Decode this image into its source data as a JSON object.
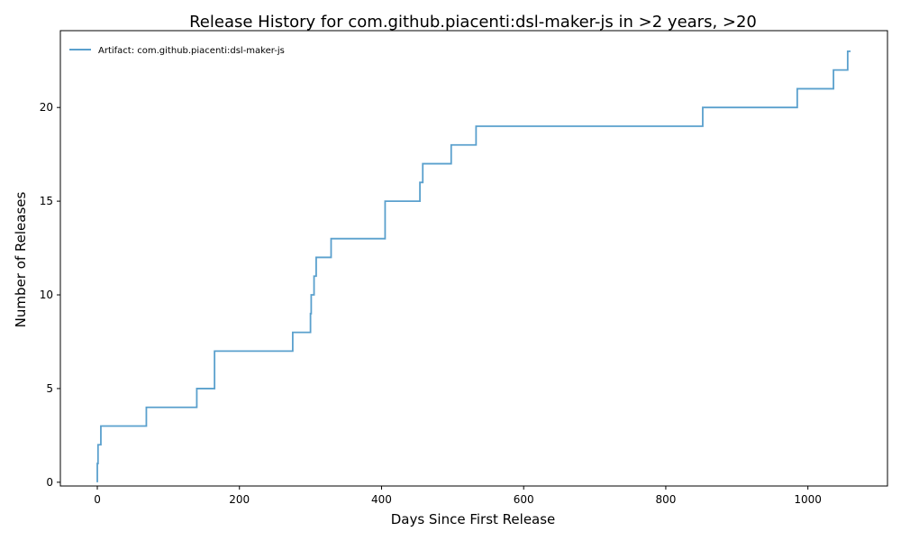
{
  "chart_data": {
    "type": "line",
    "title": "Release History for com.github.piacenti:dsl-maker-js in >2 years, >20",
    "xlabel": "Days Since First Release",
    "ylabel": "Number of Releases",
    "xlim": [
      -52,
      1112
    ],
    "ylim": [
      -0.2,
      24.1
    ],
    "xticks": [
      0,
      200,
      400,
      600,
      800,
      1000
    ],
    "yticks": [
      0,
      5,
      10,
      15,
      20
    ],
    "grid": false,
    "legend_position": "top-left",
    "series": [
      {
        "name": "Artifact: com.github.piacenti:dsl-maker-js",
        "color": "#5aa0cd",
        "step": "post",
        "x": [
          0,
          1,
          5,
          69,
          140,
          165,
          275,
          300,
          301,
          305,
          308,
          329,
          405,
          454,
          458,
          498,
          533,
          852,
          985,
          1036,
          1056,
          1060
        ],
        "y": [
          1,
          2,
          3,
          4,
          5,
          7,
          8,
          9,
          10,
          11,
          12,
          13,
          15,
          16,
          17,
          18,
          19,
          20,
          21,
          22,
          23,
          23
        ]
      }
    ]
  }
}
